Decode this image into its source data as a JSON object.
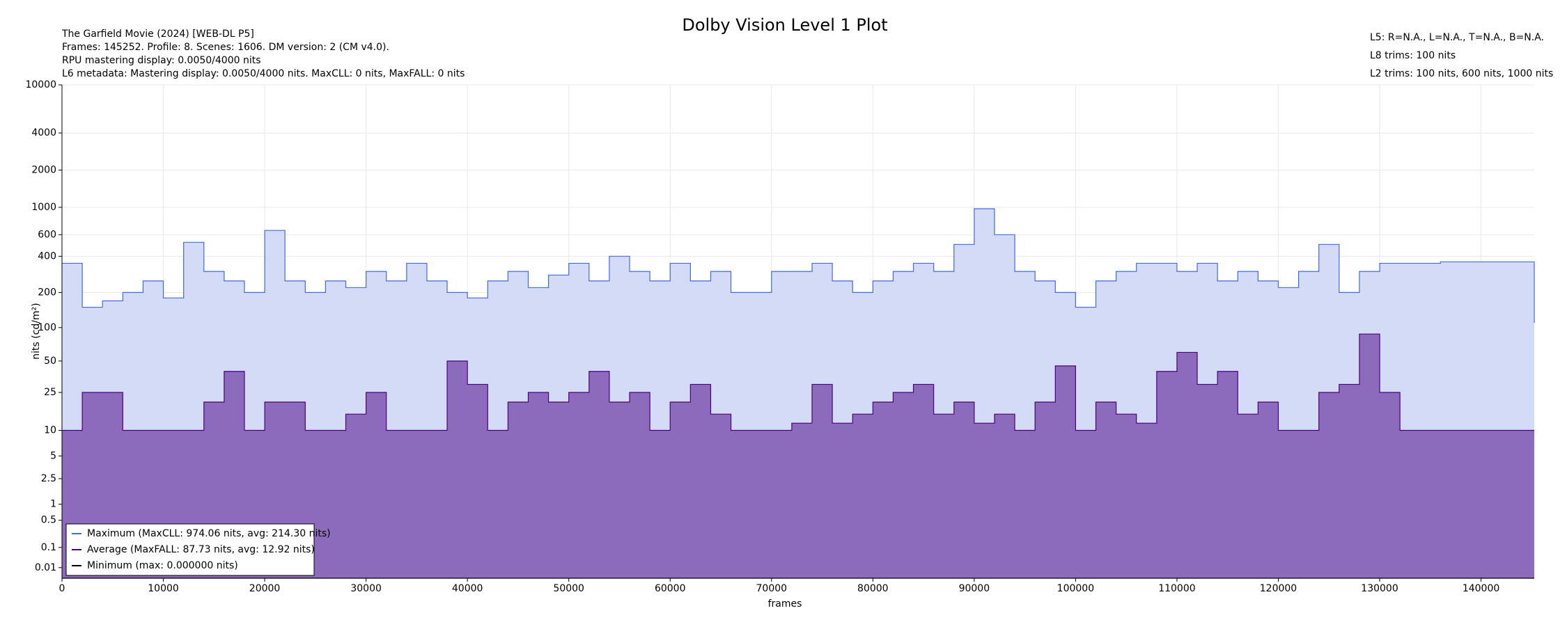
{
  "chart_data": {
    "type": "line",
    "title": "Dolby Vision Level 1 Plot",
    "info_left": [
      "The Garfield Movie (2024) [WEB-DL P5]",
      "Frames: 145252. Profile: 8. Scenes: 1606. DM version: 2 (CM v4.0).",
      "RPU mastering display: 0.0050/4000 nits",
      "L6 metadata: Mastering display: 0.0050/4000 nits. MaxCLL: 0 nits, MaxFALL: 0 nits"
    ],
    "info_right": [
      "L5: R=N.A., L=N.A., T=N.A., B=N.A.",
      "L8 trims: 100 nits",
      "L2 trims: 100 nits, 600 nits, 1000 nits"
    ],
    "xlabel": "frames",
    "ylabel": "nits (cd/m²)",
    "yscale": "pq",
    "grid": true,
    "legend": "lower left",
    "xlim": [
      0,
      145252
    ],
    "ylim": [
      0,
      10000
    ],
    "xticks": [
      0,
      10000,
      20000,
      30000,
      40000,
      50000,
      60000,
      70000,
      80000,
      90000,
      100000,
      110000,
      120000,
      130000,
      140000
    ],
    "yticks": [
      0.01,
      0.1,
      0.5,
      1,
      2.5,
      5,
      10,
      25,
      50,
      100,
      200,
      400,
      600,
      1000,
      2000,
      4000,
      10000
    ],
    "x": [
      0,
      2000,
      4000,
      6000,
      8000,
      10000,
      12000,
      14000,
      16000,
      18000,
      20000,
      22000,
      24000,
      26000,
      28000,
      30000,
      32000,
      34000,
      36000,
      38000,
      40000,
      42000,
      44000,
      46000,
      48000,
      50000,
      52000,
      54000,
      56000,
      58000,
      60000,
      62000,
      64000,
      66000,
      68000,
      70000,
      72000,
      74000,
      76000,
      78000,
      80000,
      82000,
      84000,
      86000,
      88000,
      90000,
      92000,
      94000,
      96000,
      98000,
      100000,
      102000,
      104000,
      106000,
      108000,
      110000,
      112000,
      114000,
      116000,
      118000,
      120000,
      122000,
      124000,
      126000,
      128000,
      130000,
      132000,
      134000,
      136000,
      138000,
      140000,
      142000,
      144000,
      145252
    ],
    "series": [
      {
        "name": "Maximum (MaxCLL: 974.06 nits, avg: 214.30 nits)",
        "color": "#4169e1",
        "fill": "#d3dbf6",
        "values": [
          350,
          150,
          170,
          200,
          250,
          180,
          520,
          300,
          250,
          200,
          650,
          250,
          200,
          250,
          220,
          300,
          250,
          350,
          250,
          200,
          180,
          250,
          300,
          220,
          280,
          350,
          250,
          400,
          300,
          250,
          350,
          250,
          300,
          200,
          200,
          300,
          300,
          350,
          250,
          200,
          250,
          300,
          350,
          300,
          500,
          974.06,
          600,
          300,
          250,
          200,
          150,
          250,
          300,
          350,
          350,
          300,
          350,
          250,
          300,
          250,
          220,
          300,
          500,
          200,
          300,
          350,
          350,
          350,
          360,
          360,
          360,
          360,
          360,
          110
        ]
      },
      {
        "name": "Average (MaxFALL: 87.73 nits, avg: 12.92 nits)",
        "color": "#4b0082",
        "fill": "#8c6bbd",
        "values": [
          10,
          25,
          25,
          10,
          10,
          10,
          10,
          20,
          40,
          10,
          20,
          20,
          10,
          10,
          15,
          25,
          10,
          10,
          10,
          50,
          30,
          10,
          20,
          25,
          20,
          25,
          40,
          20,
          25,
          10,
          20,
          30,
          15,
          10,
          10,
          10,
          12,
          30,
          12,
          15,
          20,
          25,
          30,
          15,
          20,
          12,
          15,
          10,
          20,
          45,
          10,
          20,
          15,
          12,
          40,
          60,
          30,
          40,
          15,
          20,
          10,
          10,
          25,
          30,
          87.73,
          25,
          10,
          10,
          10,
          10,
          10,
          10,
          10,
          10
        ]
      },
      {
        "name": "Minimum (max: 0.000000 nits)",
        "color": "#000000",
        "values": [
          0,
          0,
          0,
          0,
          0,
          0,
          0,
          0,
          0,
          0,
          0,
          0,
          0,
          0,
          0,
          0,
          0,
          0,
          0,
          0,
          0,
          0,
          0,
          0,
          0,
          0,
          0,
          0,
          0,
          0,
          0,
          0,
          0,
          0,
          0,
          0,
          0,
          0,
          0,
          0,
          0,
          0,
          0,
          0,
          0,
          0,
          0,
          0,
          0,
          0,
          0,
          0,
          0,
          0,
          0,
          0,
          0,
          0,
          0,
          0,
          0,
          0,
          0,
          0,
          0,
          0,
          0,
          0,
          0,
          0,
          0,
          0,
          0,
          0
        ]
      }
    ]
  }
}
